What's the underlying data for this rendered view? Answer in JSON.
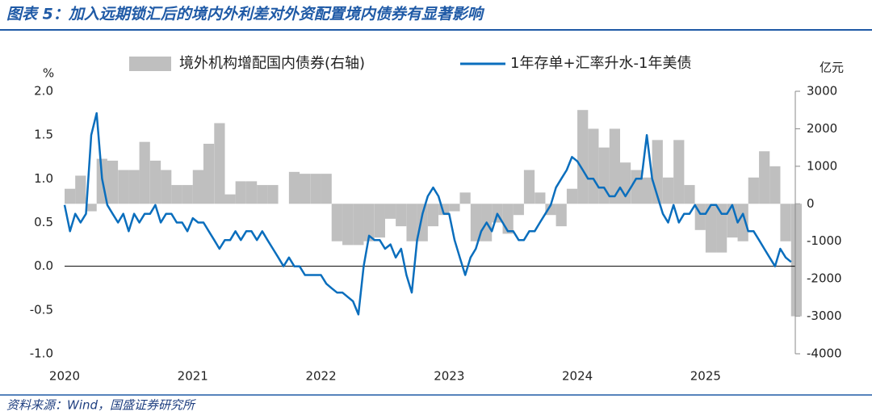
{
  "chart_data": {
    "type": "combo",
    "title": "图表 5：加入远期锁汇后的境内外利差对外资配置境内债券有显著影响",
    "y_label": "%",
    "y2_label": "亿元",
    "source": "资料来源：Wind，国盛证券研究所",
    "xlim": [
      2020,
      2025.7
    ],
    "xticks": [
      2020,
      2021,
      2022,
      2023,
      2024,
      2025
    ],
    "ylim": [
      -1,
      2
    ],
    "yticks": [
      {
        "value": 2,
        "label": "2.0"
      },
      {
        "value": 1.5,
        "label": "1.5"
      },
      {
        "value": 1,
        "label": "1.0"
      },
      {
        "value": 0.5,
        "label": "0.5"
      },
      {
        "value": 0,
        "label": "0.0"
      },
      {
        "value": -0.5,
        "label": "-0.5"
      },
      {
        "value": -1,
        "label": "-1.0"
      }
    ],
    "y2lim": [
      -4000,
      3000
    ],
    "y2ticks": [
      3000,
      2000,
      1000,
      0,
      -1000,
      -2000,
      -3000,
      -4000
    ],
    "series": [
      {
        "name": "境外机构增配国内债券(右轴)",
        "type": "bar",
        "axis": "y2",
        "color": "#bfbfbf",
        "x": [
          2020,
          2020.083,
          2020.167,
          2020.25,
          2020.333,
          2020.417,
          2020.5,
          2020.583,
          2020.667,
          2020.75,
          2020.833,
          2020.917,
          2021,
          2021.083,
          2021.167,
          2021.25,
          2021.333,
          2021.417,
          2021.5,
          2021.583,
          2021.667,
          2021.75,
          2021.833,
          2021.917,
          2022,
          2022.083,
          2022.167,
          2022.25,
          2022.333,
          2022.417,
          2022.5,
          2022.583,
          2022.667,
          2022.75,
          2022.833,
          2022.917,
          2023,
          2023.083,
          2023.167,
          2023.25,
          2023.333,
          2023.417,
          2023.5,
          2023.583,
          2023.667,
          2023.75,
          2023.833,
          2023.917,
          2024,
          2024.083,
          2024.167,
          2024.25,
          2024.333,
          2024.417,
          2024.5,
          2024.583,
          2024.667,
          2024.75,
          2024.833,
          2024.917,
          2025,
          2025.083,
          2025.167,
          2025.25,
          2025.333,
          2025.417,
          2025.5,
          2025.583,
          2025.667
        ],
        "values": [
          400,
          750,
          -200,
          1200,
          1150,
          900,
          900,
          1650,
          1150,
          900,
          500,
          500,
          900,
          1600,
          2150,
          250,
          600,
          600,
          500,
          500,
          0,
          850,
          800,
          800,
          800,
          -1000,
          -1100,
          -1100,
          -1000,
          -900,
          -400,
          -600,
          -1000,
          -1000,
          -600,
          -300,
          -200,
          300,
          -1000,
          -1000,
          -500,
          -800,
          -300,
          900,
          300,
          -300,
          -600,
          400,
          2500,
          2000,
          1500,
          2000,
          1100,
          900,
          700,
          1700,
          700,
          1700,
          500,
          -700,
          -1300,
          -1300,
          -900,
          -1000,
          700,
          1400,
          1000,
          -1000,
          -3000
        ]
      },
      {
        "name": "1年存单+汇率升水-1年美债",
        "type": "line",
        "color": "#0a6ebd",
        "x": [
          2020,
          2020.042,
          2020.083,
          2020.125,
          2020.167,
          2020.208,
          2020.25,
          2020.292,
          2020.333,
          2020.375,
          2020.417,
          2020.458,
          2020.5,
          2020.542,
          2020.583,
          2020.625,
          2020.667,
          2020.708,
          2020.75,
          2020.792,
          2020.833,
          2020.875,
          2020.917,
          2020.958,
          2021,
          2021.042,
          2021.083,
          2021.125,
          2021.167,
          2021.208,
          2021.25,
          2021.292,
          2021.333,
          2021.375,
          2021.417,
          2021.458,
          2021.5,
          2021.542,
          2021.583,
          2021.625,
          2021.667,
          2021.708,
          2021.75,
          2021.792,
          2021.833,
          2021.875,
          2021.917,
          2021.958,
          2022,
          2022.042,
          2022.083,
          2022.125,
          2022.167,
          2022.208,
          2022.25,
          2022.292,
          2022.333,
          2022.375,
          2022.417,
          2022.458,
          2022.5,
          2022.542,
          2022.583,
          2022.625,
          2022.667,
          2022.708,
          2022.75,
          2022.792,
          2022.833,
          2022.875,
          2022.917,
          2022.958,
          2023,
          2023.042,
          2023.083,
          2023.125,
          2023.167,
          2023.208,
          2023.25,
          2023.292,
          2023.333,
          2023.375,
          2023.417,
          2023.458,
          2023.5,
          2023.542,
          2023.583,
          2023.625,
          2023.667,
          2023.708,
          2023.75,
          2023.792,
          2023.833,
          2023.875,
          2023.917,
          2023.958,
          2024,
          2024.042,
          2024.083,
          2024.125,
          2024.167,
          2024.208,
          2024.25,
          2024.292,
          2024.333,
          2024.375,
          2024.417,
          2024.458,
          2024.5,
          2024.542,
          2024.583,
          2024.625,
          2024.667,
          2024.708,
          2024.75,
          2024.792,
          2024.833,
          2024.875,
          2024.917,
          2024.958,
          2025,
          2025.042,
          2025.083,
          2025.125,
          2025.167,
          2025.208,
          2025.25,
          2025.292,
          2025.333,
          2025.375,
          2025.417,
          2025.458,
          2025.5,
          2025.542,
          2025.583,
          2025.625,
          2025.667
        ],
        "values": [
          0.7,
          0.4,
          0.6,
          0.5,
          0.6,
          1.5,
          1.75,
          1.0,
          0.7,
          0.6,
          0.5,
          0.6,
          0.4,
          0.6,
          0.5,
          0.6,
          0.6,
          0.7,
          0.5,
          0.6,
          0.6,
          0.5,
          0.5,
          0.4,
          0.55,
          0.5,
          0.5,
          0.4,
          0.3,
          0.2,
          0.3,
          0.3,
          0.4,
          0.3,
          0.4,
          0.4,
          0.3,
          0.4,
          0.3,
          0.2,
          0.1,
          0.0,
          0.1,
          0.0,
          0.0,
          -0.1,
          -0.1,
          -0.1,
          -0.1,
          -0.2,
          -0.25,
          -0.3,
          -0.3,
          -0.35,
          -0.4,
          -0.55,
          0.0,
          0.35,
          0.3,
          0.3,
          0.2,
          0.25,
          0.1,
          0.2,
          -0.1,
          -0.3,
          0.3,
          0.6,
          0.8,
          0.9,
          0.8,
          0.6,
          0.6,
          0.3,
          0.1,
          -0.1,
          0.1,
          0.2,
          0.4,
          0.5,
          0.4,
          0.6,
          0.5,
          0.4,
          0.4,
          0.3,
          0.3,
          0.4,
          0.4,
          0.5,
          0.6,
          0.7,
          0.9,
          1.0,
          1.1,
          1.25,
          1.2,
          1.1,
          1.0,
          1.0,
          0.9,
          0.9,
          0.8,
          0.8,
          0.9,
          0.8,
          0.9,
          1.0,
          1.0,
          1.5,
          1.0,
          0.8,
          0.6,
          0.5,
          0.7,
          0.5,
          0.6,
          0.6,
          0.7,
          0.6,
          0.6,
          0.7,
          0.7,
          0.6,
          0.6,
          0.7,
          0.5,
          0.6,
          0.4,
          0.4,
          0.3,
          0.2,
          0.1,
          0.0,
          0.2,
          0.1,
          0.05
        ]
      }
    ]
  }
}
